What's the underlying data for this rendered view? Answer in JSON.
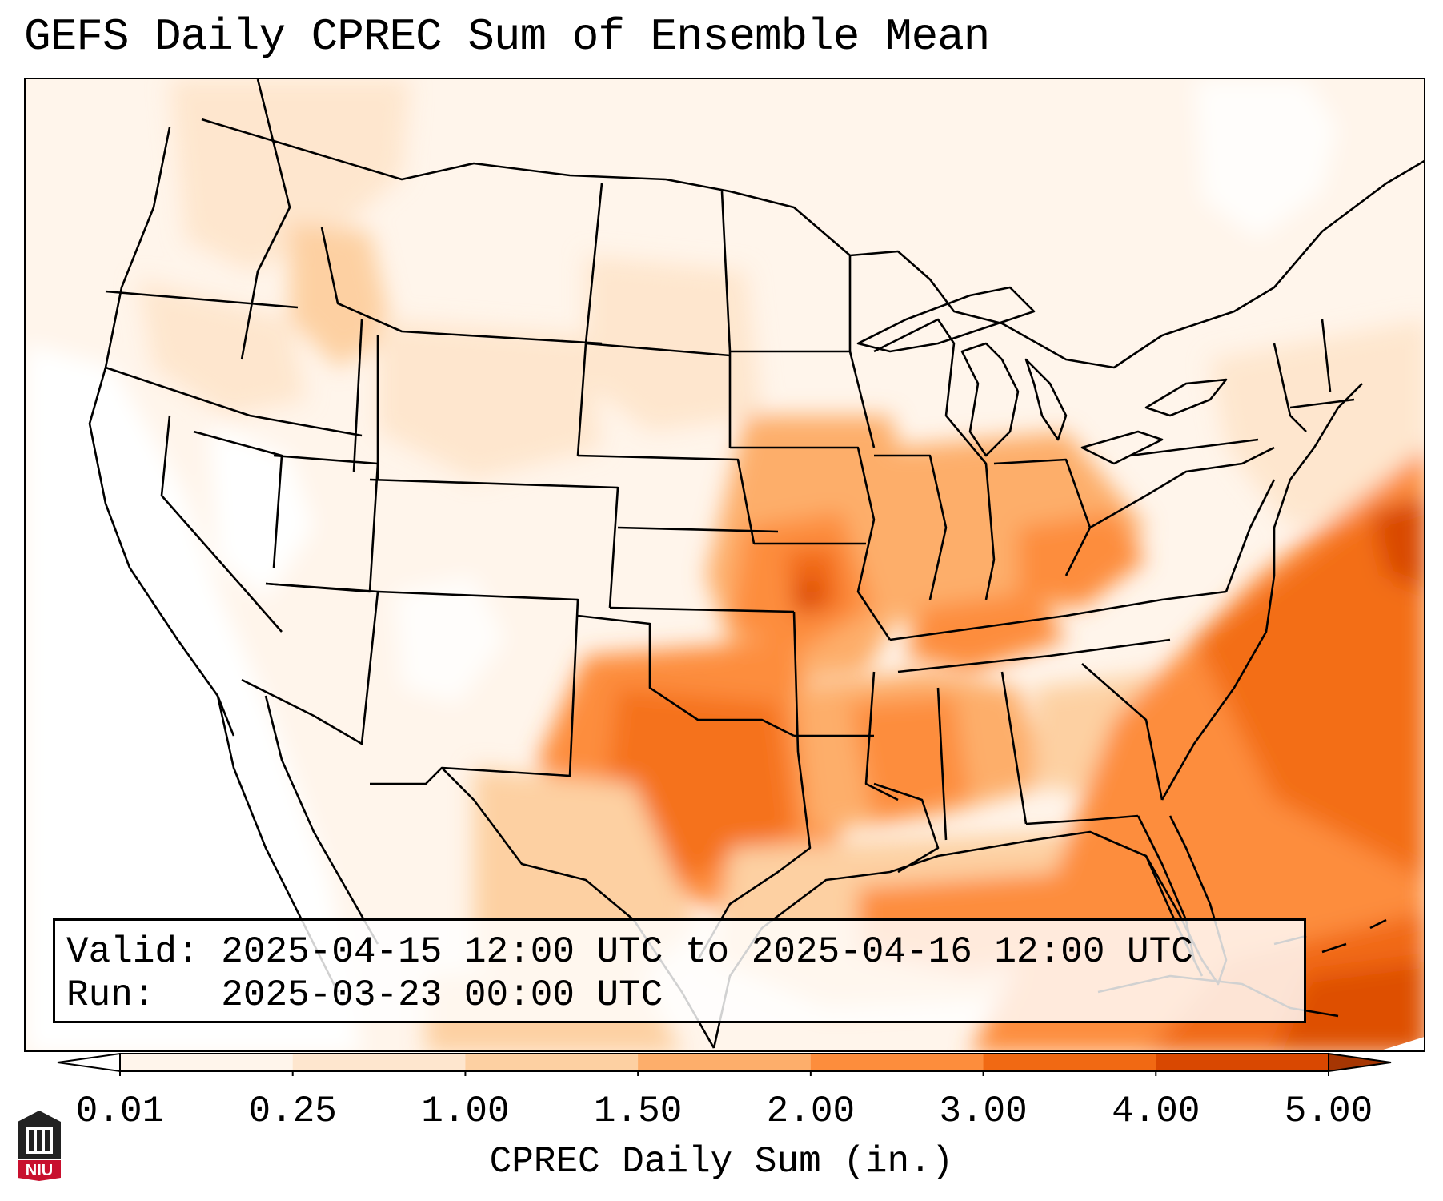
{
  "title": "GEFS Daily CPREC Sum of Ensemble Mean",
  "info": {
    "valid_label": "Valid:",
    "valid_value": "2025-04-15 12:00 UTC to 2025-04-16 12:00 UTC",
    "run_label": "Run:",
    "run_value": "2025-03-23 00:00 UTC"
  },
  "colorbar": {
    "label": "CPREC Daily Sum (in.)",
    "ticks": [
      "0.01",
      "0.25",
      "1.00",
      "1.50",
      "2.00",
      "3.00",
      "4.00",
      "5.00"
    ],
    "colors": [
      "#fff5eb",
      "#fee6ce",
      "#fdd0a2",
      "#fdae6b",
      "#fd8d3c",
      "#f16913",
      "#d94801"
    ],
    "under_color": "#ffffff",
    "over_color": "#a63603"
  },
  "logo": {
    "text": "NIU",
    "color": "#c8102e"
  },
  "map": {
    "projection": "Lambert conformal (CONUS)",
    "region_labels": []
  }
}
